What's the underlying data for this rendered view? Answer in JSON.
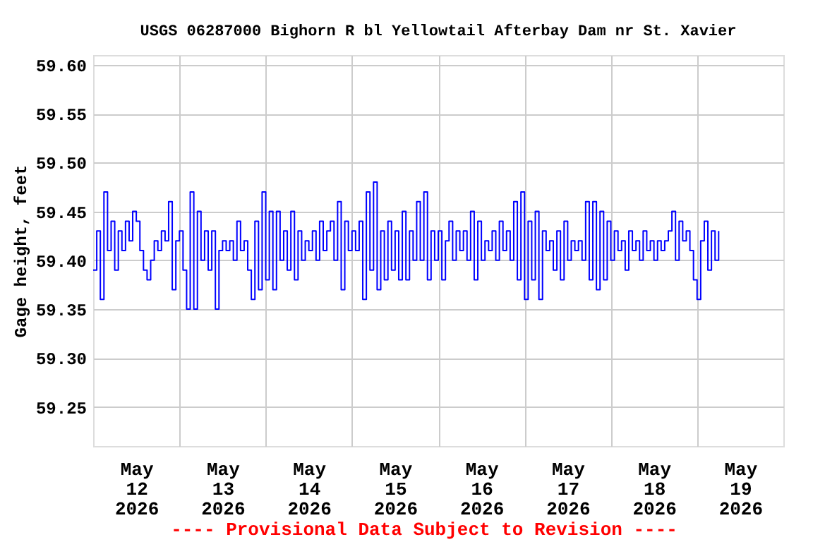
{
  "chart_data": {
    "type": "step",
    "title": "USGS 06287000 Bighorn R bl Yellowtail Afterbay Dam nr St. Xavier",
    "ylabel": "Gage height, feet",
    "annotations": [
      "---- Provisional Data Subject to Revision ----"
    ],
    "grid": true,
    "xlim": [
      "2026-05-12T00:00",
      "2026-05-20T00:00"
    ],
    "xticks": [
      {
        "value": "2026-05-12T12:00",
        "label": "May\n12\n2026"
      },
      {
        "value": "2026-05-13T12:00",
        "label": "May\n13\n2026"
      },
      {
        "value": "2026-05-14T12:00",
        "label": "May\n14\n2026"
      },
      {
        "value": "2026-05-15T12:00",
        "label": "May\n15\n2026"
      },
      {
        "value": "2026-05-16T12:00",
        "label": "May\n16\n2026"
      },
      {
        "value": "2026-05-17T12:00",
        "label": "May\n17\n2026"
      },
      {
        "value": "2026-05-18T12:00",
        "label": "May\n18\n2026"
      },
      {
        "value": "2026-05-19T12:00",
        "label": "May\n19\n2026"
      },
      {
        "value": "2026-05-13T00:00",
        "label": null
      },
      {
        "value": "2026-05-14T00:00",
        "label": null
      },
      {
        "value": "2026-05-15T00:00",
        "label": null
      },
      {
        "value": "2026-05-16T00:00",
        "label": null
      },
      {
        "value": "2026-05-17T00:00",
        "label": null
      },
      {
        "value": "2026-05-18T00:00",
        "label": null
      },
      {
        "value": "2026-05-19T00:00",
        "label": null
      }
    ],
    "ylim": [
      59.21,
      59.61
    ],
    "yticks": [
      {
        "value": 59.25,
        "label": "59.25"
      },
      {
        "value": 59.3,
        "label": "59.30"
      },
      {
        "value": 59.35,
        "label": "59.35"
      },
      {
        "value": 59.4,
        "label": "59.40"
      },
      {
        "value": 59.45,
        "label": "59.45"
      },
      {
        "value": 59.5,
        "label": "59.50"
      },
      {
        "value": 59.55,
        "label": "59.55"
      },
      {
        "value": 59.6,
        "label": "59.60"
      }
    ],
    "series": [
      {
        "color": "#0000ff",
        "x": [
          "2026-05-12T00:00",
          "2026-05-12T01:00",
          "2026-05-12T02:00",
          "2026-05-12T03:00",
          "2026-05-12T04:00",
          "2026-05-12T05:00",
          "2026-05-12T06:00",
          "2026-05-12T07:00",
          "2026-05-12T08:00",
          "2026-05-12T09:00",
          "2026-05-12T10:00",
          "2026-05-12T11:00",
          "2026-05-12T12:00",
          "2026-05-12T13:00",
          "2026-05-12T14:00",
          "2026-05-12T15:00",
          "2026-05-12T16:00",
          "2026-05-12T17:00",
          "2026-05-12T18:00",
          "2026-05-12T19:00",
          "2026-05-12T20:00",
          "2026-05-12T21:00",
          "2026-05-12T22:00",
          "2026-05-12T23:00",
          "2026-05-13T00:00",
          "2026-05-13T01:00",
          "2026-05-13T02:00",
          "2026-05-13T03:00",
          "2026-05-13T04:00",
          "2026-05-13T05:00",
          "2026-05-13T06:00",
          "2026-05-13T07:00",
          "2026-05-13T08:00",
          "2026-05-13T09:00",
          "2026-05-13T10:00",
          "2026-05-13T11:00",
          "2026-05-13T12:00",
          "2026-05-13T13:00",
          "2026-05-13T14:00",
          "2026-05-13T15:00",
          "2026-05-13T16:00",
          "2026-05-13T17:00",
          "2026-05-13T18:00",
          "2026-05-13T19:00",
          "2026-05-13T20:00",
          "2026-05-13T21:00",
          "2026-05-13T22:00",
          "2026-05-13T23:00",
          "2026-05-14T00:00",
          "2026-05-14T01:00",
          "2026-05-14T02:00",
          "2026-05-14T03:00",
          "2026-05-14T04:00",
          "2026-05-14T05:00",
          "2026-05-14T06:00",
          "2026-05-14T07:00",
          "2026-05-14T08:00",
          "2026-05-14T09:00",
          "2026-05-14T10:00",
          "2026-05-14T11:00",
          "2026-05-14T12:00",
          "2026-05-14T13:00",
          "2026-05-14T14:00",
          "2026-05-14T15:00",
          "2026-05-14T16:00",
          "2026-05-14T17:00",
          "2026-05-14T18:00",
          "2026-05-14T19:00",
          "2026-05-14T20:00",
          "2026-05-14T21:00",
          "2026-05-14T22:00",
          "2026-05-14T23:00",
          "2026-05-15T00:00",
          "2026-05-15T01:00",
          "2026-05-15T02:00",
          "2026-05-15T03:00",
          "2026-05-15T04:00",
          "2026-05-15T05:00",
          "2026-05-15T06:00",
          "2026-05-15T07:00",
          "2026-05-15T08:00",
          "2026-05-15T09:00",
          "2026-05-15T10:00",
          "2026-05-15T11:00",
          "2026-05-15T12:00",
          "2026-05-15T13:00",
          "2026-05-15T14:00",
          "2026-05-15T15:00",
          "2026-05-15T16:00",
          "2026-05-15T17:00",
          "2026-05-15T18:00",
          "2026-05-15T19:00",
          "2026-05-15T20:00",
          "2026-05-15T21:00",
          "2026-05-15T22:00",
          "2026-05-15T23:00",
          "2026-05-16T00:00",
          "2026-05-16T01:00",
          "2026-05-16T02:00",
          "2026-05-16T03:00",
          "2026-05-16T04:00",
          "2026-05-16T05:00",
          "2026-05-16T06:00",
          "2026-05-16T07:00",
          "2026-05-16T08:00",
          "2026-05-16T09:00",
          "2026-05-16T10:00",
          "2026-05-16T11:00",
          "2026-05-16T12:00",
          "2026-05-16T13:00",
          "2026-05-16T14:00",
          "2026-05-16T15:00",
          "2026-05-16T16:00",
          "2026-05-16T17:00",
          "2026-05-16T18:00",
          "2026-05-16T19:00",
          "2026-05-16T20:00",
          "2026-05-16T21:00",
          "2026-05-16T22:00",
          "2026-05-16T23:00",
          "2026-05-17T00:00",
          "2026-05-17T01:00",
          "2026-05-17T02:00",
          "2026-05-17T03:00",
          "2026-05-17T04:00",
          "2026-05-17T05:00",
          "2026-05-17T06:00",
          "2026-05-17T07:00",
          "2026-05-17T08:00",
          "2026-05-17T09:00",
          "2026-05-17T10:00",
          "2026-05-17T11:00",
          "2026-05-17T12:00",
          "2026-05-17T13:00",
          "2026-05-17T14:00",
          "2026-05-17T15:00",
          "2026-05-17T16:00",
          "2026-05-17T17:00",
          "2026-05-17T18:00",
          "2026-05-17T19:00",
          "2026-05-17T20:00",
          "2026-05-17T21:00",
          "2026-05-17T22:00",
          "2026-05-17T23:00",
          "2026-05-18T00:00",
          "2026-05-18T01:00",
          "2026-05-18T02:00",
          "2026-05-18T03:00",
          "2026-05-18T04:00",
          "2026-05-18T05:00",
          "2026-05-18T06:00",
          "2026-05-18T07:00",
          "2026-05-18T08:00",
          "2026-05-18T09:00",
          "2026-05-18T10:00",
          "2026-05-18T11:00",
          "2026-05-18T12:00",
          "2026-05-18T13:00",
          "2026-05-18T14:00",
          "2026-05-18T15:00",
          "2026-05-18T16:00",
          "2026-05-18T17:00",
          "2026-05-18T18:00",
          "2026-05-18T19:00",
          "2026-05-18T20:00",
          "2026-05-18T21:00",
          "2026-05-18T22:00",
          "2026-05-18T23:00",
          "2026-05-19T00:00",
          "2026-05-19T01:00",
          "2026-05-19T02:00",
          "2026-05-19T03:00",
          "2026-05-19T04:00",
          "2026-05-19T05:00",
          "2026-05-19T06:00"
        ],
        "values": [
          59.39,
          59.43,
          59.36,
          59.47,
          59.41,
          59.44,
          59.39,
          59.43,
          59.41,
          59.44,
          59.42,
          59.45,
          59.44,
          59.41,
          59.39,
          59.38,
          59.4,
          59.42,
          59.41,
          59.43,
          59.42,
          59.46,
          59.37,
          59.42,
          59.43,
          59.39,
          59.35,
          59.47,
          59.35,
          59.45,
          59.4,
          59.43,
          59.39,
          59.43,
          59.35,
          59.41,
          59.42,
          59.41,
          59.42,
          59.4,
          59.44,
          59.41,
          59.42,
          59.39,
          59.36,
          59.44,
          59.37,
          59.47,
          59.38,
          59.45,
          59.37,
          59.45,
          59.4,
          59.43,
          59.39,
          59.45,
          59.38,
          59.43,
          59.4,
          59.42,
          59.41,
          59.43,
          59.4,
          59.44,
          59.41,
          59.43,
          59.44,
          59.4,
          59.46,
          59.37,
          59.44,
          59.41,
          59.43,
          59.41,
          59.44,
          59.36,
          59.47,
          59.39,
          59.48,
          59.37,
          59.43,
          59.38,
          59.44,
          59.39,
          59.43,
          59.38,
          59.45,
          59.38,
          59.43,
          59.4,
          59.46,
          59.4,
          59.47,
          59.38,
          59.43,
          59.4,
          59.43,
          59.38,
          59.42,
          59.44,
          59.4,
          59.43,
          59.41,
          59.43,
          59.4,
          59.45,
          59.38,
          59.44,
          59.4,
          59.42,
          59.41,
          59.43,
          59.4,
          59.44,
          59.41,
          59.43,
          59.4,
          59.46,
          59.38,
          59.47,
          59.36,
          59.44,
          59.38,
          59.45,
          59.36,
          59.43,
          59.41,
          59.42,
          59.39,
          59.43,
          59.38,
          59.44,
          59.4,
          59.42,
          59.41,
          59.42,
          59.4,
          59.46,
          59.38,
          59.46,
          59.37,
          59.45,
          59.38,
          59.44,
          59.4,
          59.43,
          59.41,
          59.42,
          59.39,
          59.43,
          59.41,
          59.42,
          59.4,
          59.43,
          59.41,
          59.42,
          59.4,
          59.42,
          59.41,
          59.42,
          59.43,
          59.45,
          59.4,
          59.44,
          59.42,
          59.43,
          59.41,
          59.38,
          59.36,
          59.42,
          59.44,
          59.39,
          59.43,
          59.4,
          59.43
        ]
      }
    ]
  }
}
